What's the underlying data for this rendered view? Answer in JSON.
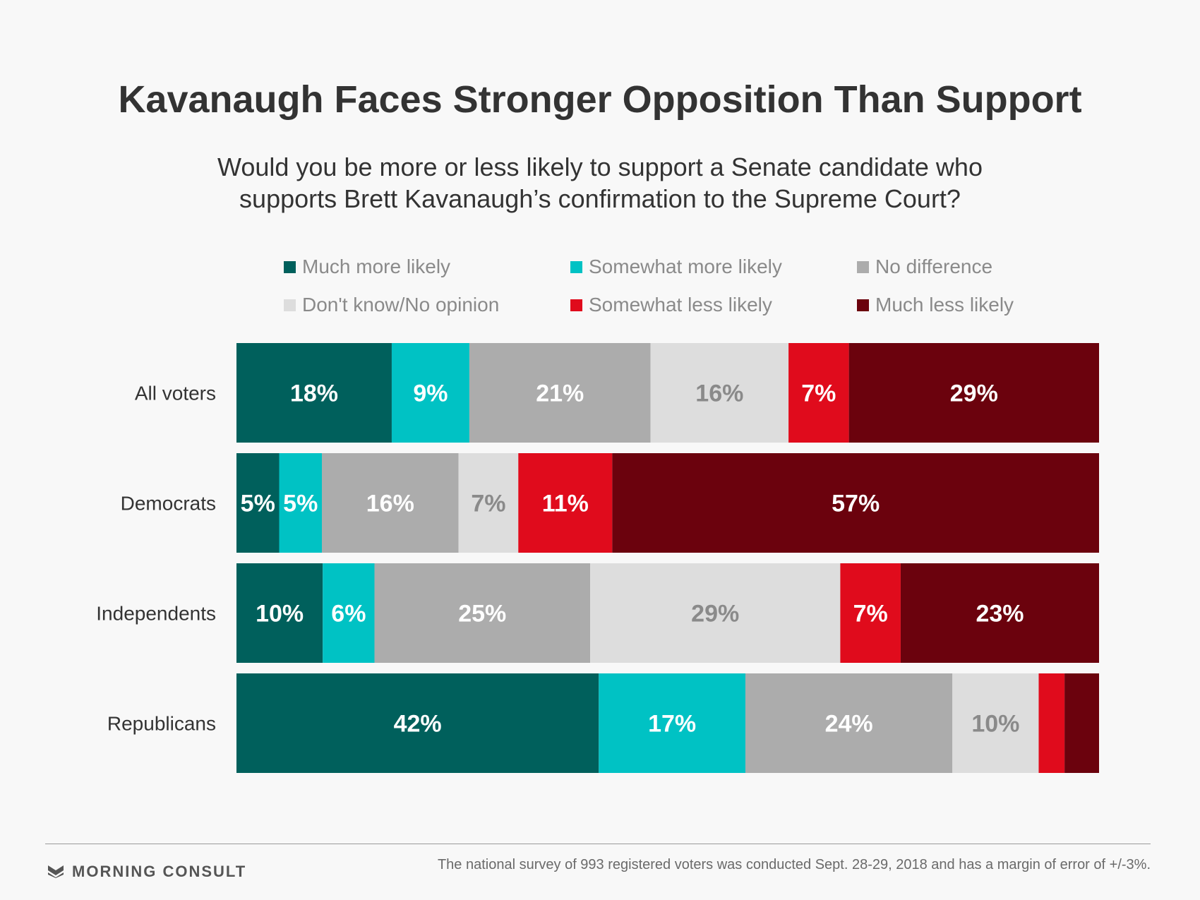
{
  "chart_data": {
    "type": "bar",
    "orientation": "horizontal-stacked-100",
    "title": "Kavanaugh Faces Stronger Opposition Than Support",
    "subtitle_lines": [
      "Would you be more or less likely to support a Senate candidate who",
      "supports Brett Kavanaugh’s confirmation to the Supreme Court?"
    ],
    "categories": [
      "All voters",
      "Democrats",
      "Independents",
      "Republicans"
    ],
    "series": [
      {
        "name": "Much more likely",
        "color": "#00605c",
        "label_color": "#ffffff",
        "values": [
          18,
          5,
          10,
          42
        ]
      },
      {
        "name": "Somewhat more likely",
        "color": "#00c2c4",
        "label_color": "#ffffff",
        "values": [
          9,
          5,
          6,
          17
        ]
      },
      {
        "name": "No difference",
        "color": "#acacac",
        "label_color": "#ffffff",
        "values": [
          21,
          16,
          25,
          24
        ]
      },
      {
        "name": "Don't know/No opinion",
        "color": "#dddddd",
        "label_color": "#8a8a8a",
        "values": [
          16,
          7,
          29,
          10
        ]
      },
      {
        "name": "Somewhat less likely",
        "color": "#e00b1c",
        "label_color": "#ffffff",
        "values": [
          7,
          11,
          7,
          3
        ]
      },
      {
        "name": "Much less likely",
        "color": "#6b020d",
        "label_color": "#ffffff",
        "values": [
          29,
          57,
          23,
          4
        ]
      }
    ],
    "value_labels_shown": [
      [
        true,
        true,
        true,
        true,
        true,
        true
      ],
      [
        true,
        true,
        true,
        true,
        true,
        true
      ],
      [
        true,
        true,
        true,
        true,
        true,
        true
      ],
      [
        true,
        true,
        true,
        true,
        false,
        false
      ]
    ],
    "value_suffix": "%",
    "xlim": [
      0,
      100
    ],
    "legend_position": "top",
    "grid": false
  },
  "footer": {
    "brand": "MORNING CONSULT",
    "note": "The national survey of 993 registered voters was conducted Sept. 28-29, 2018 and has a margin of error of +/-3%."
  }
}
